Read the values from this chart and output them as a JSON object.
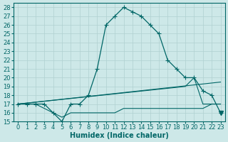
{
  "title": "",
  "xlabel": "Humidex (Indice chaleur)",
  "ylabel": "",
  "background_color": "#cde8e8",
  "grid_color": "#b0d0d0",
  "line_color": "#006666",
  "xlim": [
    -0.5,
    23.5
  ],
  "ylim": [
    15,
    28.5
  ],
  "xticks": [
    0,
    1,
    2,
    3,
    4,
    5,
    6,
    7,
    8,
    9,
    10,
    11,
    12,
    13,
    14,
    15,
    16,
    17,
    18,
    19,
    20,
    21,
    22,
    23
  ],
  "yticks": [
    15,
    16,
    17,
    18,
    19,
    20,
    21,
    22,
    23,
    24,
    25,
    26,
    27,
    28
  ],
  "series1_x": [
    0,
    1,
    2,
    3,
    4,
    5,
    6,
    7,
    8,
    9,
    10,
    11,
    12,
    13,
    14,
    15,
    16,
    17,
    18,
    19,
    20,
    21,
    22,
    23
  ],
  "series1_y": [
    17,
    17,
    17,
    17,
    16,
    15,
    17,
    17,
    18,
    21,
    26,
    27,
    28,
    27.5,
    27,
    26,
    25,
    22,
    21,
    20,
    20,
    18.5,
    18,
    16
  ],
  "series2_x": [
    0,
    1,
    2,
    3,
    4,
    5,
    6,
    7,
    8,
    9,
    10,
    11,
    12,
    13,
    14,
    15,
    16,
    17,
    18,
    19,
    20,
    21,
    22,
    23
  ],
  "series2_y": [
    17,
    17,
    17,
    16.5,
    16,
    15.5,
    16,
    16,
    16,
    16,
    16,
    16,
    16.5,
    16.5,
    16.5,
    16.5,
    16.5,
    16.5,
    16.5,
    16.5,
    16.5,
    16.5,
    17,
    17
  ],
  "series3_x": [
    0,
    19,
    20,
    21,
    22,
    23
  ],
  "series3_y": [
    17,
    19,
    20,
    17,
    17,
    17
  ],
  "series4_x": [
    0,
    23
  ],
  "series4_y": [
    17,
    19.5
  ],
  "triangle_x": 23,
  "triangle_y": 16,
  "fontsize_xlabel": 7,
  "fontsize_ticks": 6
}
